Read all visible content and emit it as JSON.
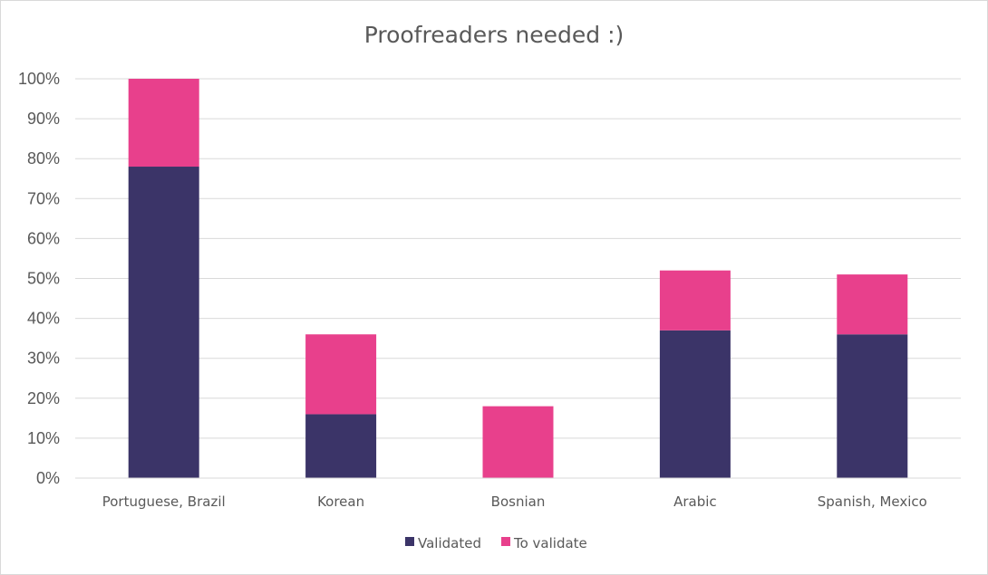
{
  "chart_data": {
    "type": "bar",
    "stacked": true,
    "title": "Proofreaders needed :)",
    "categories": [
      "Portuguese, Brazil",
      "Korean",
      "Bosnian",
      "Arabic",
      "Spanish, Mexico"
    ],
    "series": [
      {
        "name": "Validated",
        "color": "#3b3468",
        "values": [
          78,
          16,
          0,
          37,
          36
        ]
      },
      {
        "name": "To validate",
        "color": "#e8408c",
        "values": [
          22,
          20,
          18,
          15,
          15
        ]
      }
    ],
    "ylim": [
      0,
      100
    ],
    "yticks": [
      "0%",
      "10%",
      "20%",
      "30%",
      "40%",
      "50%",
      "60%",
      "70%",
      "80%",
      "90%",
      "100%"
    ],
    "grid": true,
    "legend_position": "bottom",
    "gridline_color": "#d9d9d9"
  }
}
